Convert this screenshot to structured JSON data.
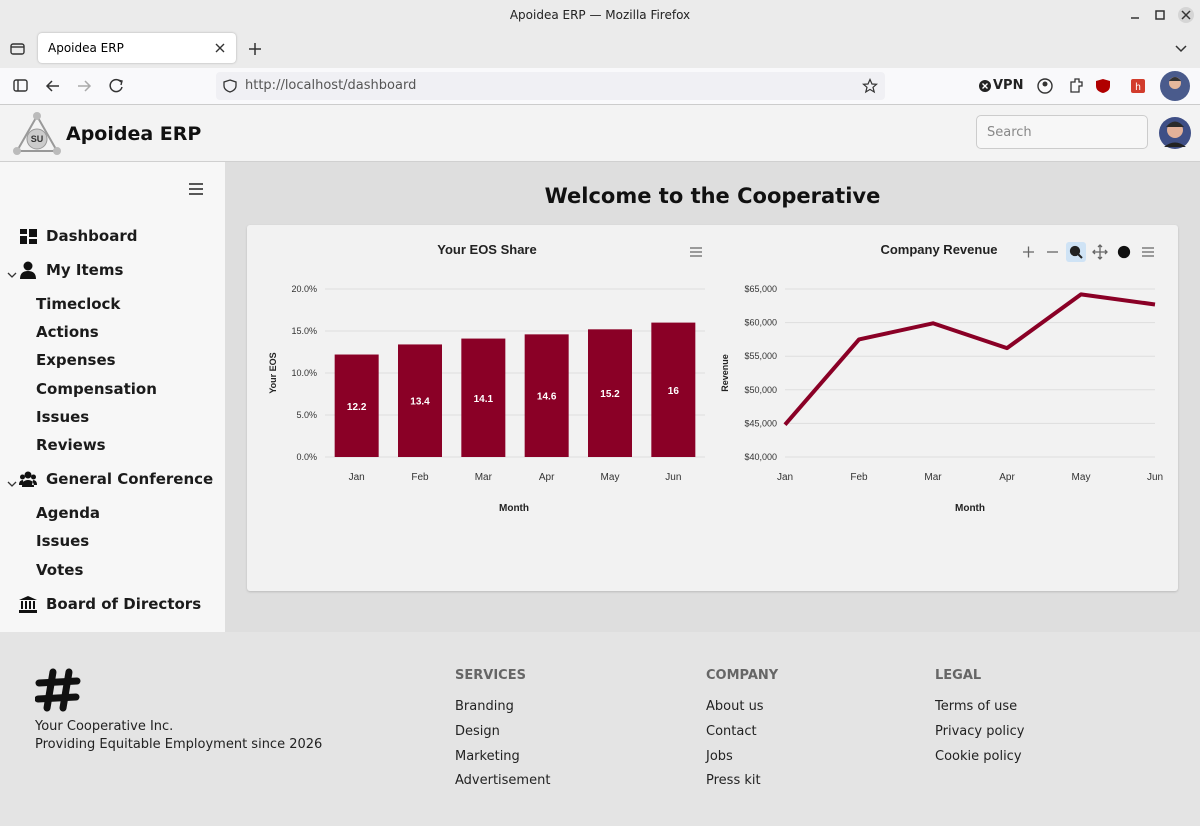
{
  "browser": {
    "window_title": "Apoidea ERP — Mozilla Firefox",
    "tab_title": "Apoidea ERP",
    "url": "http://localhost/dashboard",
    "vpn": "VPN"
  },
  "header": {
    "logo_text": "SU",
    "brand": "Apoidea ERP",
    "search_placeholder": "Search"
  },
  "sidebar": {
    "sections": [
      {
        "label": "Dashboard"
      },
      {
        "label": "My Items",
        "items": [
          "Timeclock",
          "Actions",
          "Expenses",
          "Compensation",
          "Issues",
          "Reviews"
        ]
      },
      {
        "label": "General Conference",
        "items": [
          "Agenda",
          "Issues",
          "Votes"
        ]
      },
      {
        "label": "Board of Directors"
      }
    ]
  },
  "main": {
    "title": "Welcome to the Cooperative"
  },
  "chart_data": [
    {
      "type": "bar",
      "title": "Your EOS Share",
      "x_label": "Month",
      "y_label": "Your EOS",
      "categories": [
        "Jan",
        "Feb",
        "Mar",
        "Apr",
        "May",
        "Jun"
      ],
      "values": [
        12.2,
        13.4,
        14.1,
        14.6,
        15.2,
        16
      ],
      "color": "#8a0026",
      "ylim": [
        0,
        20
      ],
      "grid": true,
      "yticks": [
        {
          "value": 0,
          "label": "0.0%"
        },
        {
          "value": 5,
          "label": "5.0%"
        },
        {
          "value": 10,
          "label": "10.0%"
        },
        {
          "value": 15,
          "label": "15.0%"
        },
        {
          "value": 20,
          "label": "20.0%"
        }
      ]
    },
    {
      "type": "line",
      "title": "Company Revenue",
      "x_label": "Month",
      "y_label": "Revenue",
      "categories": [
        "Jan",
        "Feb",
        "Mar",
        "Apr",
        "May",
        "Jun"
      ],
      "values": [
        44800,
        57500,
        59900,
        56200,
        64200,
        62700
      ],
      "color": "#8a0026",
      "ylim": [
        40000,
        65000
      ],
      "grid": true,
      "yticks": [
        {
          "value": 40000,
          "label": "$40,000"
        },
        {
          "value": 45000,
          "label": "$45,000"
        },
        {
          "value": 50000,
          "label": "$50,000"
        },
        {
          "value": 55000,
          "label": "$55,000"
        },
        {
          "value": 60000,
          "label": "$60,000"
        },
        {
          "value": 65000,
          "label": "$65,000"
        }
      ]
    }
  ],
  "footer": {
    "company": "Your Cooperative Inc.",
    "tagline": "Providing Equitable Employment since 2026",
    "columns": [
      {
        "heading": "SERVICES",
        "links": [
          "Branding",
          "Design",
          "Marketing",
          "Advertisement"
        ]
      },
      {
        "heading": "COMPANY",
        "links": [
          "About us",
          "Contact",
          "Jobs",
          "Press kit"
        ]
      },
      {
        "heading": "LEGAL",
        "links": [
          "Terms of use",
          "Privacy policy",
          "Cookie policy"
        ]
      }
    ]
  }
}
